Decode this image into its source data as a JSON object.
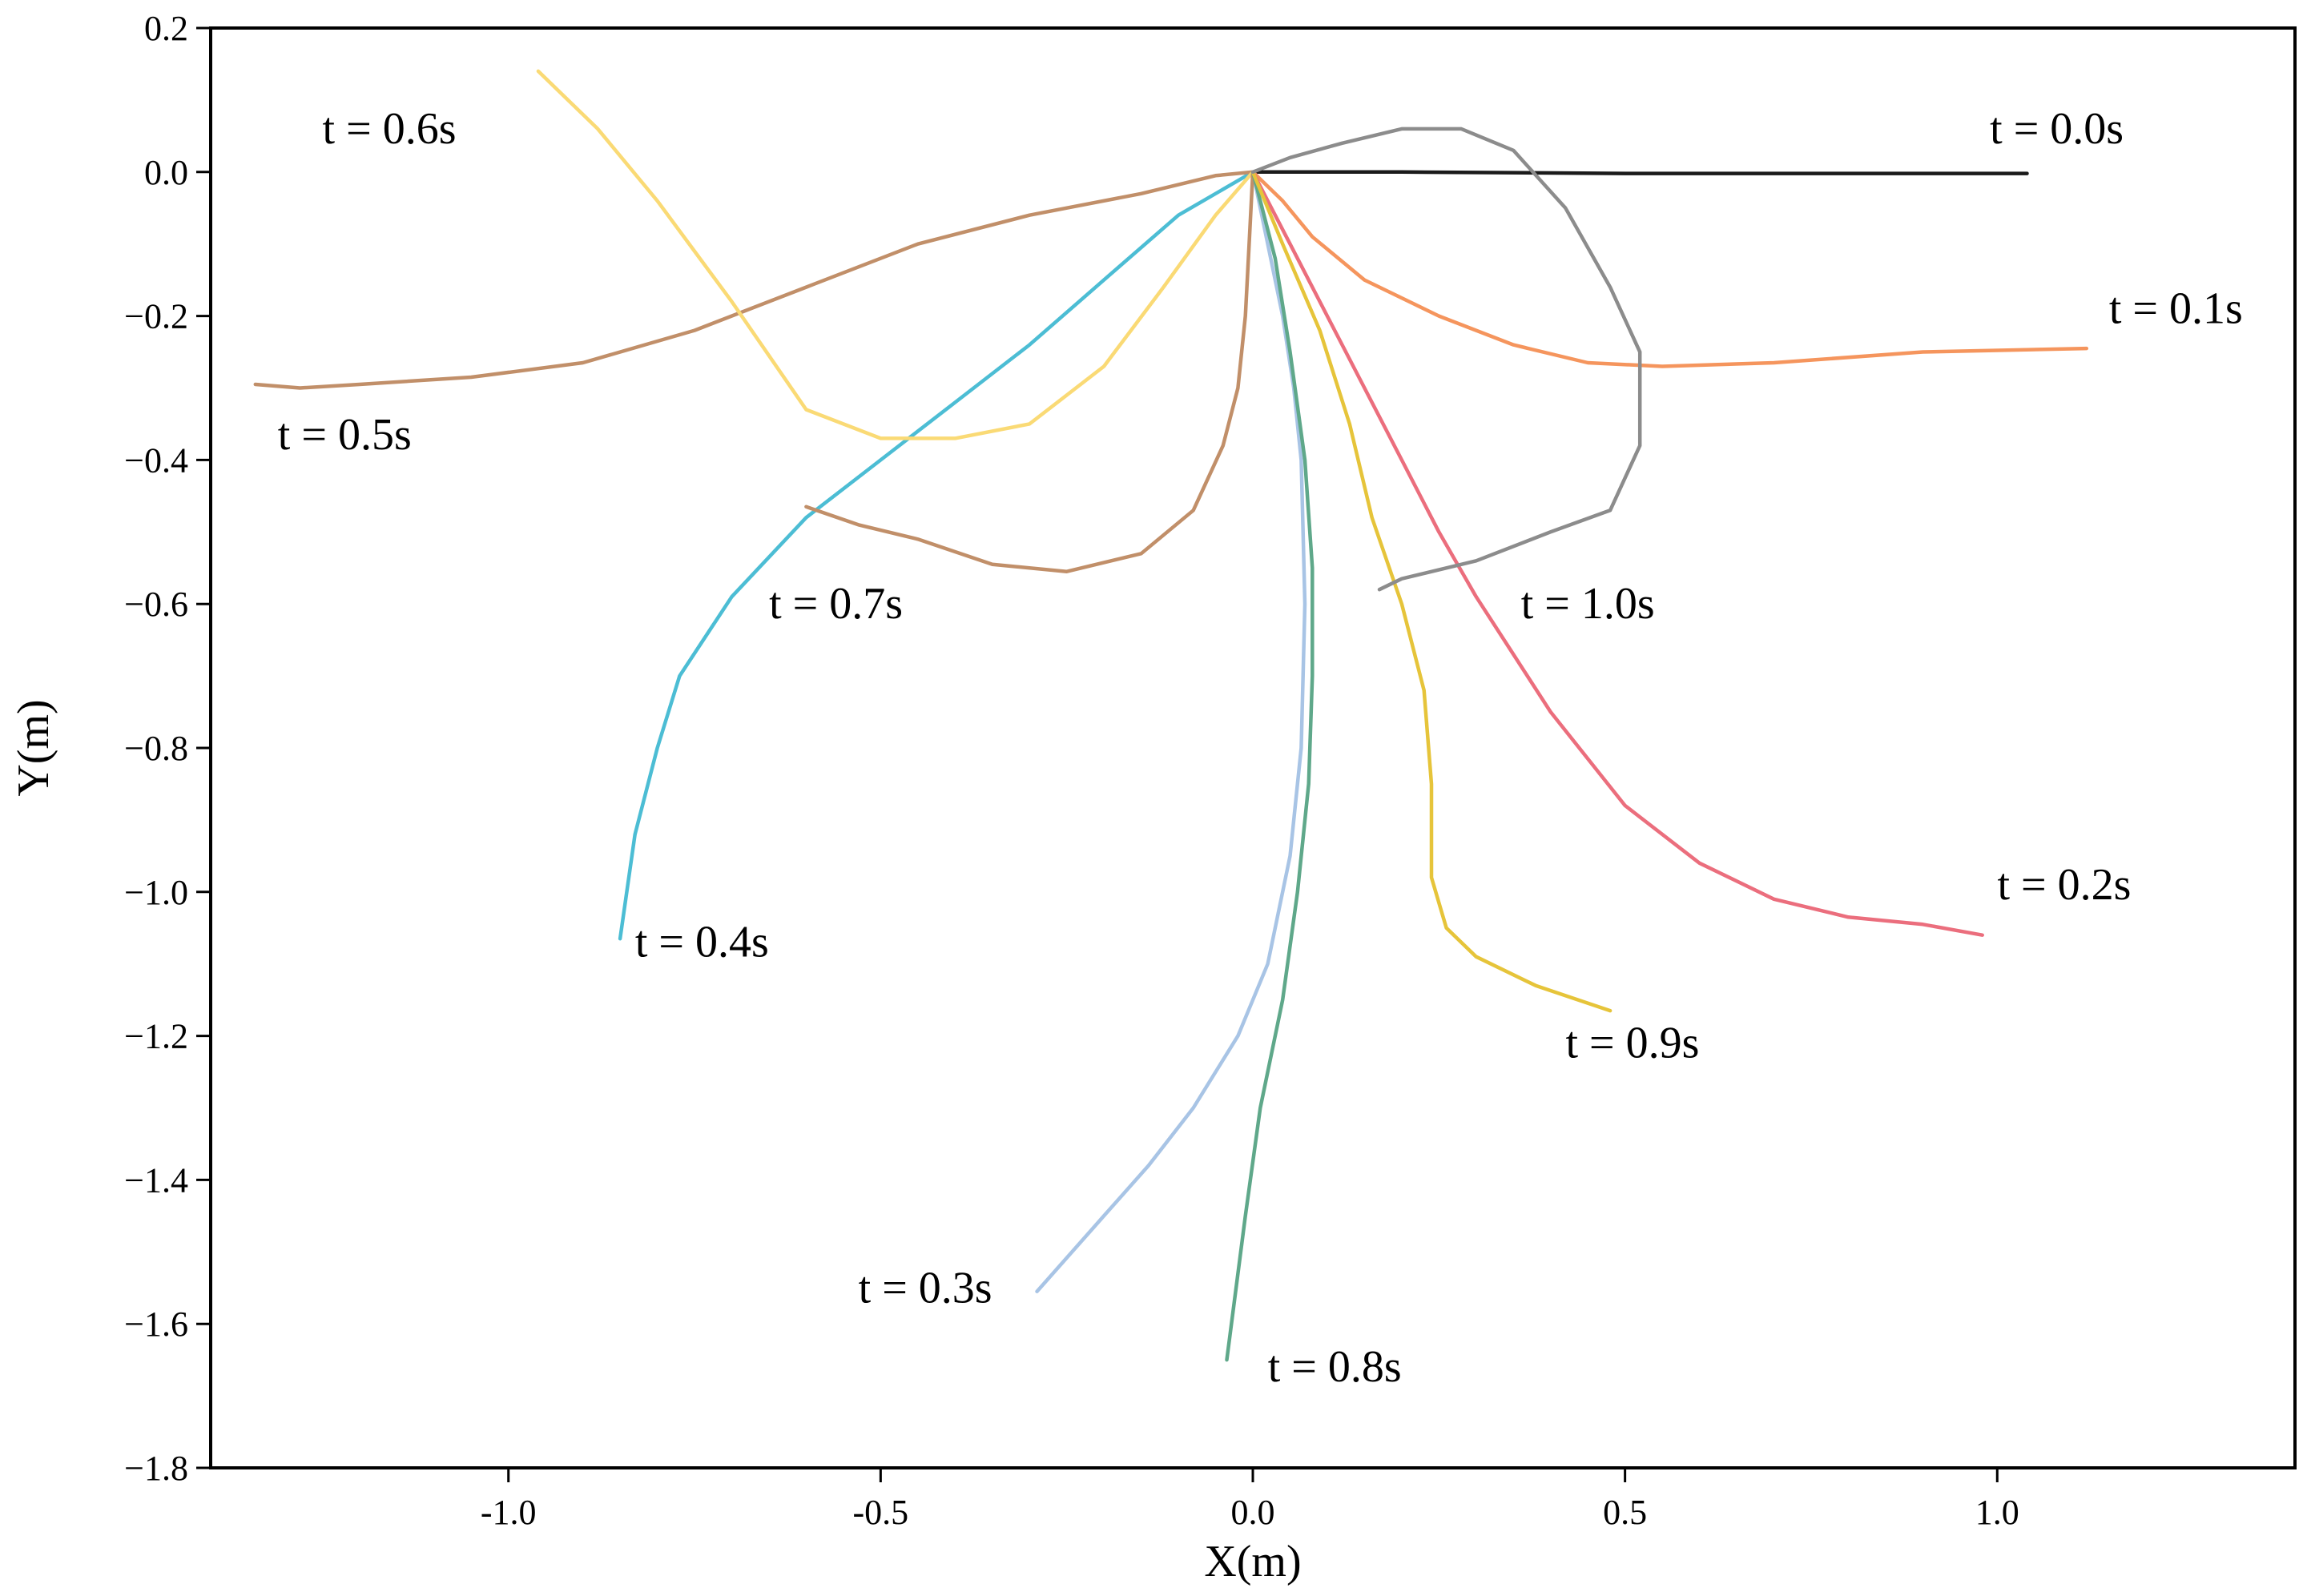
{
  "chart_data": {
    "type": "line",
    "xlabel": "X(m)",
    "ylabel": "Y(m)",
    "xlim": [
      -1.4,
      1.4
    ],
    "ylim": [
      -1.8,
      0.2
    ],
    "xticks": [
      -1.0,
      -0.5,
      0.0,
      0.5,
      1.0
    ],
    "xtick_labels": [
      "-1.0",
      "-0.5",
      "0.0",
      "0.5",
      "1.0"
    ],
    "yticks": [
      0.2,
      0.0,
      -0.2,
      -0.4,
      -0.6,
      -0.8,
      -1.0,
      -1.2,
      -1.4,
      -1.6,
      -1.8
    ],
    "ytick_labels": [
      "0.2",
      "0.0",
      "−0.2",
      "−0.4",
      "−0.6",
      "−0.8",
      "−1.0",
      "−1.2",
      "−1.4",
      "−1.6",
      "−1.8"
    ],
    "grid": false,
    "series": [
      {
        "name": "t = 0.0s",
        "color": "#1a1a1a",
        "label_at": [
          1.08,
          0.06
        ],
        "x": [
          0,
          0.2,
          0.5,
          0.8,
          1.04
        ],
        "y": [
          0,
          0,
          -0.002,
          -0.002,
          -0.002
        ]
      },
      {
        "name": "t = 0.1s",
        "color": "#f5955d",
        "label_at": [
          1.24,
          -0.19
        ],
        "x": [
          0,
          0.04,
          0.08,
          0.15,
          0.25,
          0.35,
          0.45,
          0.55,
          0.7,
          0.9,
          1.12
        ],
        "y": [
          0,
          -0.04,
          -0.09,
          -0.15,
          -0.2,
          -0.24,
          -0.265,
          -0.27,
          -0.265,
          -0.25,
          -0.245
        ]
      },
      {
        "name": "t = 0.2s",
        "color": "#eb6e7d",
        "label_at": [
          1.09,
          -0.99
        ],
        "x": [
          0,
          0.05,
          0.1,
          0.15,
          0.2,
          0.25,
          0.3,
          0.35,
          0.4,
          0.5,
          0.6,
          0.7,
          0.8,
          0.9,
          0.98
        ],
        "y": [
          0,
          -0.1,
          -0.2,
          -0.3,
          -0.4,
          -0.5,
          -0.59,
          -0.67,
          -0.75,
          -0.88,
          -0.96,
          -1.01,
          -1.035,
          -1.045,
          -1.06
        ]
      },
      {
        "name": "t = 0.3s",
        "color": "#a8c4e5",
        "label_at": [
          -0.44,
          -1.55
        ],
        "x": [
          0,
          0.02,
          0.04,
          0.055,
          0.065,
          0.07,
          0.065,
          0.05,
          0.02,
          -0.02,
          -0.08,
          -0.14,
          -0.2,
          -0.29
        ],
        "y": [
          0,
          -0.1,
          -0.2,
          -0.3,
          -0.4,
          -0.6,
          -0.8,
          -0.95,
          -1.1,
          -1.2,
          -1.3,
          -1.38,
          -1.45,
          -1.555
        ]
      },
      {
        "name": "t = 0.4s",
        "color": "#4cbdd4",
        "label_at": [
          -0.74,
          -1.07
        ],
        "x": [
          0,
          -0.1,
          -0.2,
          -0.3,
          -0.4,
          -0.5,
          -0.6,
          -0.7,
          -0.77,
          -0.8,
          -0.83,
          -0.85
        ],
        "y": [
          0,
          -0.06,
          -0.15,
          -0.24,
          -0.32,
          -0.4,
          -0.48,
          -0.59,
          -0.7,
          -0.8,
          -0.92,
          -1.065
        ]
      },
      {
        "name": "t = 0.5s",
        "color": "#c18f69",
        "label_at": [
          -1.22,
          -0.365
        ],
        "x": [
          0,
          -0.05,
          -0.15,
          -0.3,
          -0.45,
          -0.6,
          -0.75,
          -0.9,
          -1.05,
          -1.2,
          -1.28,
          -1.34
        ],
        "y": [
          0,
          -0.005,
          -0.03,
          -0.06,
          -0.1,
          -0.16,
          -0.22,
          -0.265,
          -0.285,
          -0.295,
          -0.3,
          -0.295
        ]
      },
      {
        "name": "t = 0.6s",
        "color": "#fada75",
        "label_at": [
          -1.16,
          0.06
        ],
        "x": [
          0,
          -0.05,
          -0.12,
          -0.2,
          -0.3,
          -0.4,
          -0.5,
          -0.6,
          -0.7,
          -0.8,
          -0.88,
          -0.96
        ],
        "y": [
          0,
          -0.06,
          -0.16,
          -0.27,
          -0.35,
          -0.37,
          -0.37,
          -0.33,
          -0.18,
          -0.04,
          0.06,
          0.14
        ]
      },
      {
        "name": "t = 0.7s",
        "color": "#c18f69",
        "label_at": [
          -0.56,
          -0.6
        ],
        "x": [
          0,
          -0.005,
          -0.01,
          -0.02,
          -0.04,
          -0.08,
          -0.15,
          -0.25,
          -0.35,
          -0.45,
          -0.53,
          -0.6
        ],
        "y": [
          0,
          -0.1,
          -0.2,
          -0.3,
          -0.38,
          -0.47,
          -0.53,
          -0.555,
          -0.545,
          -0.51,
          -0.49,
          -0.465
        ]
      },
      {
        "name": "t = 0.8s",
        "color": "#5fa88a",
        "label_at": [
          0.11,
          -1.66
        ],
        "x": [
          0,
          0.03,
          0.05,
          0.07,
          0.08,
          0.08,
          0.075,
          0.06,
          0.04,
          0.01,
          -0.01,
          -0.035
        ],
        "y": [
          0,
          -0.12,
          -0.25,
          -0.4,
          -0.55,
          -0.7,
          -0.85,
          -1.0,
          -1.15,
          -1.3,
          -1.45,
          -1.65
        ]
      },
      {
        "name": "t = 0.9s",
        "color": "#e6c43a",
        "label_at": [
          0.51,
          -1.21
        ],
        "x": [
          0,
          0.04,
          0.09,
          0.13,
          0.16,
          0.2,
          0.23,
          0.24,
          0.24,
          0.26,
          0.3,
          0.38,
          0.48
        ],
        "y": [
          0,
          -0.1,
          -0.22,
          -0.35,
          -0.48,
          -0.6,
          -0.72,
          -0.85,
          -0.98,
          -1.05,
          -1.09,
          -1.13,
          -1.165
        ]
      },
      {
        "name": "t = 1.0s",
        "color": "#8c8c8c",
        "label_at": [
          0.45,
          -0.6
        ],
        "x": [
          0,
          0.05,
          0.12,
          0.2,
          0.28,
          0.35,
          0.42,
          0.48,
          0.52,
          0.52,
          0.48,
          0.4,
          0.3,
          0.2,
          0.17
        ],
        "y": [
          0,
          0.02,
          0.04,
          0.06,
          0.06,
          0.03,
          -0.05,
          -0.16,
          -0.25,
          -0.38,
          -0.47,
          -0.5,
          -0.54,
          -0.565,
          -0.58
        ]
      }
    ]
  }
}
